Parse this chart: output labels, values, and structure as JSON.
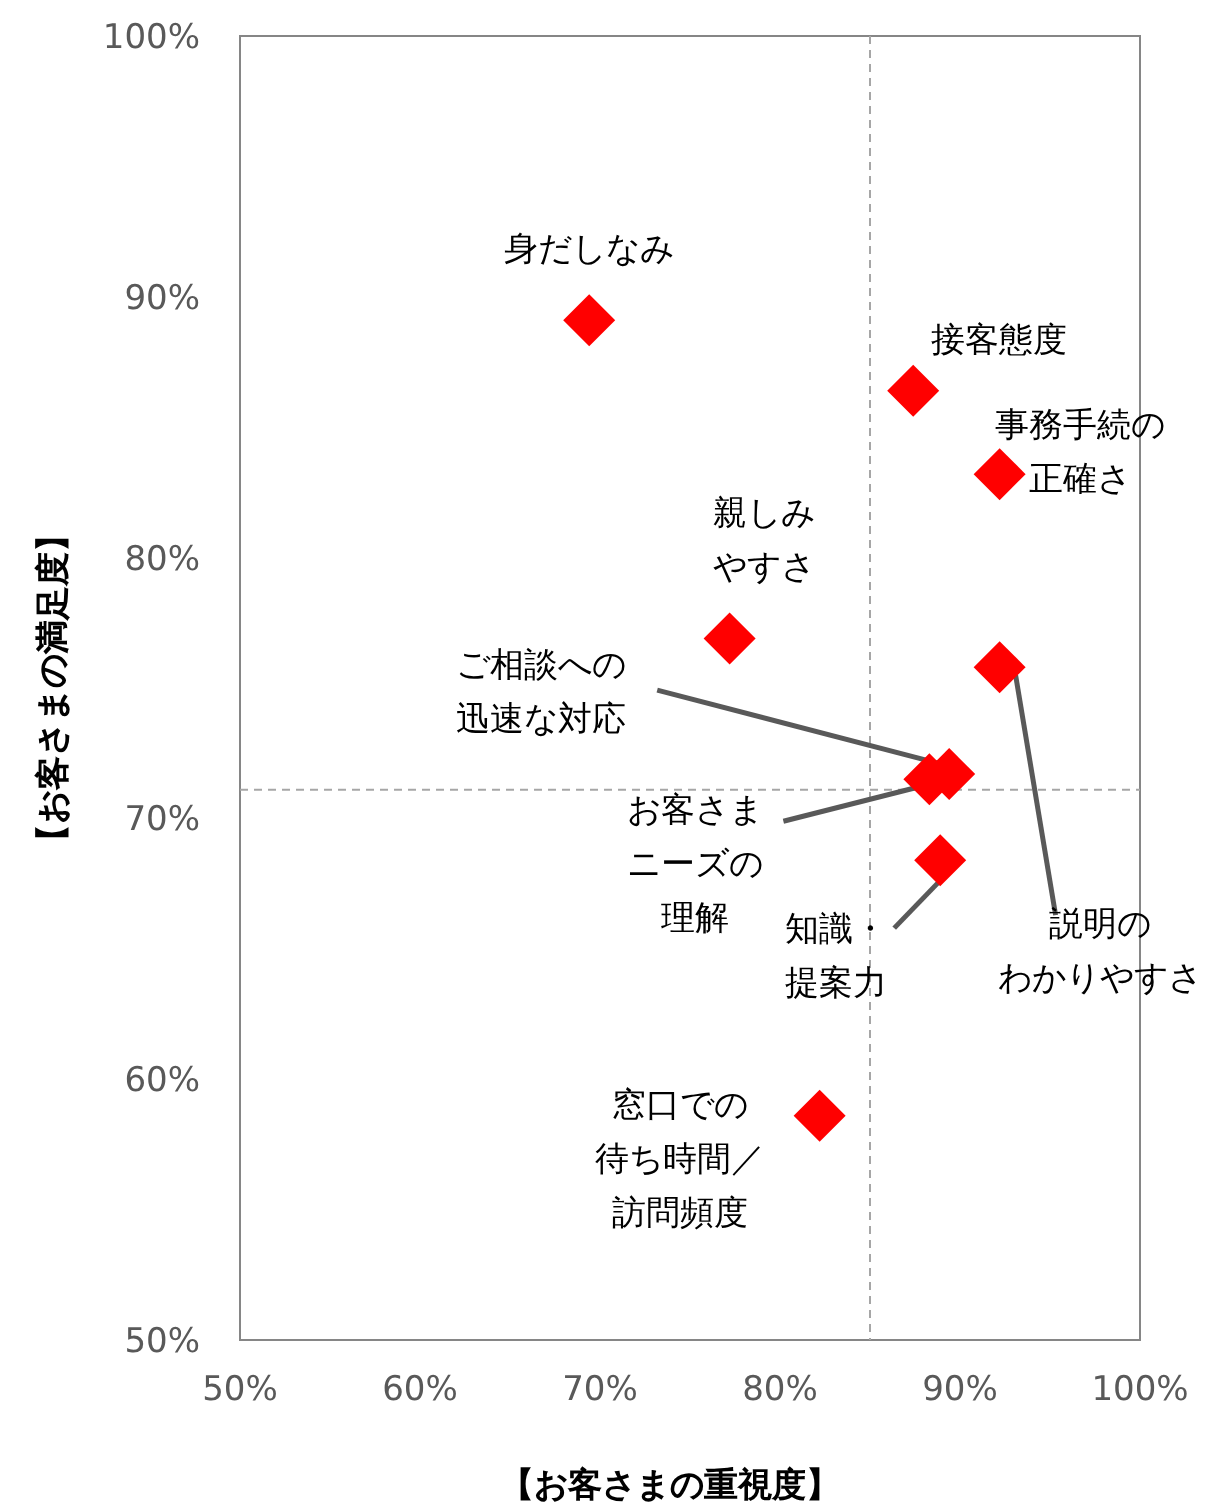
{
  "chart_data": {
    "type": "scatter",
    "xlabel": "【お客さまの重視度】",
    "ylabel": "【お客さまの満足度】",
    "marker": "diamond",
    "color": "#ff0000",
    "x": [
      69.4,
      87.4,
      92.2,
      77.2,
      89.4,
      88.3,
      88.9,
      92.2,
      82.2
    ],
    "values": [
      89.1,
      86.4,
      83.2,
      76.9,
      71.7,
      71.5,
      68.4,
      75.8,
      58.6
    ],
    "xlim": [
      50,
      100
    ],
    "ylim": [
      50,
      100
    ],
    "xticks": [
      {
        "value": 50,
        "label": "50%"
      },
      {
        "value": 60,
        "label": "60%"
      },
      {
        "value": 70,
        "label": "70%"
      },
      {
        "value": 80,
        "label": "80%"
      },
      {
        "value": 90,
        "label": "90%"
      },
      {
        "value": 100,
        "label": "100%"
      }
    ],
    "yticks": [
      {
        "value": 50,
        "label": "50%"
      },
      {
        "value": 60,
        "label": "60%"
      },
      {
        "value": 70,
        "label": "70%"
      },
      {
        "value": 80,
        "label": "80%"
      },
      {
        "value": 90,
        "label": "90%"
      },
      {
        "value": 100,
        "label": "100%"
      }
    ],
    "ref_lines": [
      {
        "axis": "x",
        "value": 85,
        "color": "#a6a6a6",
        "line_style": "dashed"
      },
      {
        "axis": "y",
        "value": 71.1,
        "color": "#a6a6a6",
        "line_style": "dashed"
      }
    ],
    "annotations": [
      {
        "text": "身だしなみ",
        "x": 69.4,
        "y": 89.1
      },
      {
        "text": "接客態度",
        "x": 87.4,
        "y": 86.4
      },
      {
        "text": "事務手続の正確さ",
        "x": 92.2,
        "y": 83.2
      },
      {
        "text": "親しみやすさ",
        "x": 77.2,
        "y": 76.9
      },
      {
        "text": "ご相談への迅速な対応",
        "x": 89.4,
        "y": 71.7
      },
      {
        "text": "お客さまニーズの理解",
        "x": 88.3,
        "y": 71.5
      },
      {
        "text": "知識・提案力",
        "x": 88.9,
        "y": 68.4
      },
      {
        "text": "説明のわかりやすさ",
        "x": 92.2,
        "y": 75.8
      },
      {
        "text": "窓口での待ち時間／訪問頻度",
        "x": 82.2,
        "y": 58.6
      }
    ],
    "grid": false
  }
}
